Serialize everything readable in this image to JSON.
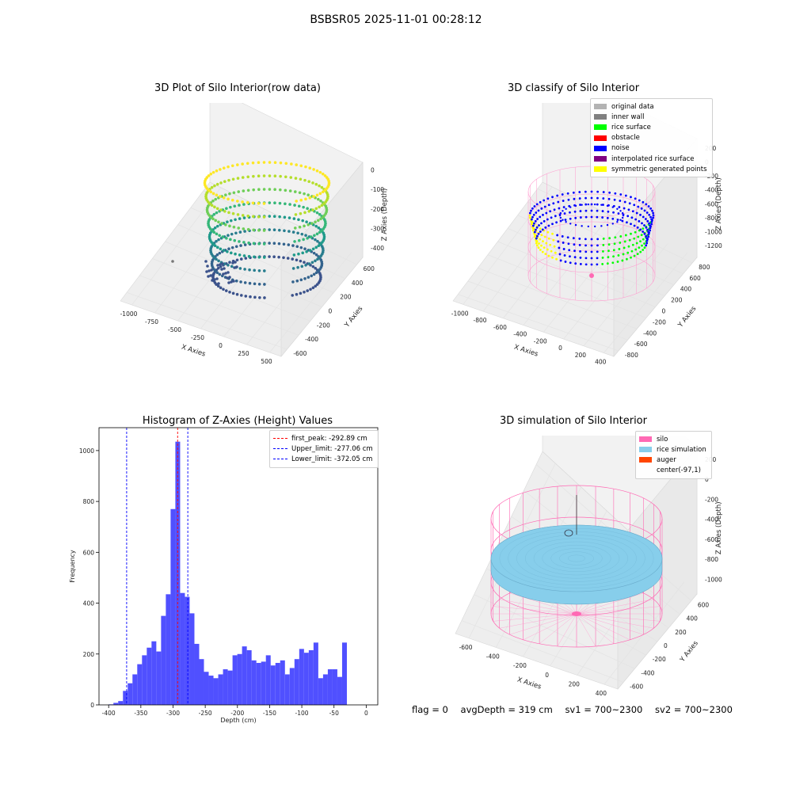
{
  "figure": {
    "title": "BSBSR05 2025-11-01 00:28:12"
  },
  "footer": {
    "flag": "flag = 0",
    "avg_depth": "avgDepth = 319 cm",
    "sv1": "sv1 = 700~2300",
    "sv2": "sv2 = 700~2300"
  },
  "colors": {
    "original_data": "#b3b3b3",
    "inner_wall": "#808080",
    "rice_surface": "#00ff00",
    "obstacle": "#ff0000",
    "noise": "#0000ff",
    "interpolated": "#800080",
    "symmetric": "#ffff00",
    "silo": "#ff69b4",
    "rice_sim": "#87ceeb",
    "auger": "#ff4500",
    "hist_bar": "#5050ff"
  },
  "chart_data": [
    {
      "type": "scatter",
      "panel": "raw",
      "title": "3D Plot of Silo Interior(row data)",
      "xlabel": "X Axies",
      "ylabel": "Y Axies",
      "zlabel": "Z Axies (Depth)",
      "x_ticks": [
        "-1000",
        "-750",
        "-500",
        "-250",
        "0",
        "250",
        "500"
      ],
      "y_ticks": [
        "-600",
        "-400",
        "-200",
        "0",
        "200",
        "400",
        "600"
      ],
      "z_ticks": [
        "0",
        "-100",
        "-200",
        "-300",
        "-400"
      ],
      "colormap": "viridis"
    },
    {
      "type": "scatter",
      "panel": "classify",
      "title": "3D classify of Silo Interior",
      "xlabel": "X Axies",
      "ylabel": "Y Axies",
      "zlabel": "Z Axies (Depth)",
      "x_ticks": [
        "-1000",
        "-800",
        "-600",
        "-400",
        "-200",
        "0",
        "200",
        "400"
      ],
      "y_ticks": [
        "-800",
        "-600",
        "-400",
        "-200",
        "0",
        "200",
        "400",
        "600",
        "800"
      ],
      "z_ticks": [
        "200",
        "0",
        "-200",
        "-400",
        "-600",
        "-800",
        "-1000",
        "-1200"
      ],
      "legend": [
        "original data",
        "inner wall",
        "rice surface",
        "obstacle",
        "noise",
        "interpolated rice surface",
        "symmetric generated points"
      ]
    },
    {
      "type": "bar",
      "panel": "histogram",
      "title": "Histogram of Z-Axies (Height) Values",
      "xlabel": "Depth (cm)",
      "ylabel": "Frequency",
      "xlim": [
        -415,
        18
      ],
      "ylim": [
        0,
        1090
      ],
      "x_ticks": [
        -400,
        -350,
        -300,
        -250,
        -200,
        -150,
        -100,
        -50,
        0
      ],
      "y_ticks": [
        0,
        200,
        400,
        600,
        800,
        1000
      ],
      "bin_start": -400,
      "bin_width": 7.4,
      "values": [
        2,
        8,
        15,
        55,
        85,
        120,
        160,
        195,
        225,
        250,
        210,
        350,
        435,
        770,
        1035,
        440,
        425,
        360,
        240,
        180,
        130,
        115,
        105,
        120,
        140,
        135,
        195,
        200,
        230,
        215,
        175,
        165,
        170,
        195,
        155,
        165,
        175,
        120,
        145,
        180,
        220,
        205,
        215,
        245,
        105,
        120,
        140,
        140,
        110,
        245
      ],
      "vlines": [
        {
          "label": "first_peak: -292.89 cm",
          "x": -292.89,
          "color": "#ff0000"
        },
        {
          "label": "Upper_limit: -277.06 cm",
          "x": -277.06,
          "color": "#0000ff"
        },
        {
          "label": "Lower_limit: -372.05 cm",
          "x": -372.05,
          "color": "#0000ff"
        }
      ]
    },
    {
      "type": "scatter",
      "panel": "simulation",
      "title": "3D simulation of Silo Interior",
      "xlabel": "X Axies",
      "ylabel": "Y Axies",
      "zlabel": "Z Axies (Depth)",
      "x_ticks": [
        "-600",
        "-400",
        "-200",
        "0",
        "200",
        "400"
      ],
      "y_ticks": [
        "-600",
        "-400",
        "-200",
        "0",
        "200",
        "400",
        "600"
      ],
      "z_ticks": [
        "200",
        "0",
        "-200",
        "-400",
        "-600",
        "-800",
        "-1000"
      ],
      "legend": [
        "silo",
        "rice simulation",
        "auger",
        "center(-97,1)"
      ]
    }
  ]
}
